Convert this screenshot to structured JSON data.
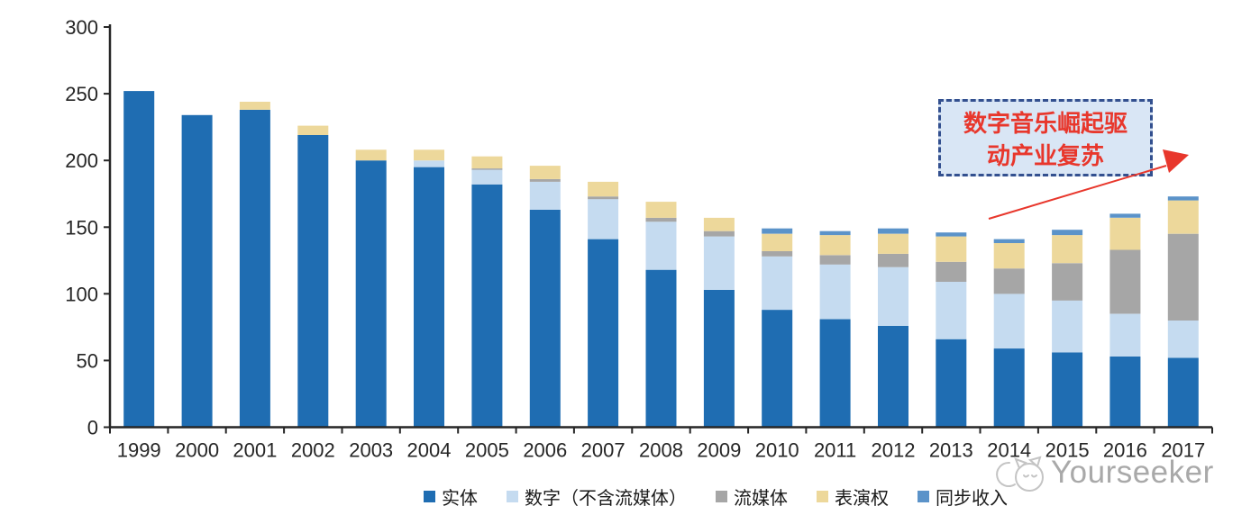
{
  "chart_data": {
    "type": "bar",
    "stacked": true,
    "title": "",
    "xlabel": "",
    "ylabel": "",
    "categories": [
      "1999",
      "2000",
      "2001",
      "2002",
      "2003",
      "2004",
      "2005",
      "2006",
      "2007",
      "2008",
      "2009",
      "2010",
      "2011",
      "2012",
      "2013",
      "2014",
      "2015",
      "2016",
      "2017"
    ],
    "series": [
      {
        "key": "physical",
        "name": "实体",
        "color": "#1F6DB2",
        "values": [
          252,
          234,
          238,
          219,
          200,
          195,
          182,
          163,
          141,
          118,
          103,
          88,
          81,
          76,
          66,
          59,
          56,
          53,
          52
        ]
      },
      {
        "key": "digital-ex-stream",
        "name": "数字（不含流媒体）",
        "color": "#C5DBF0",
        "values": [
          0,
          0,
          0,
          0,
          0,
          5,
          11,
          21,
          30,
          36,
          40,
          40,
          41,
          44,
          43,
          41,
          39,
          32,
          28
        ]
      },
      {
        "key": "streaming",
        "name": "流媒体",
        "color": "#A6A6A6",
        "values": [
          0,
          0,
          0,
          0,
          0,
          0,
          1,
          2,
          2,
          3,
          4,
          4,
          7,
          10,
          15,
          19,
          28,
          48,
          65
        ]
      },
      {
        "key": "performance",
        "name": "表演权",
        "color": "#EDD89B",
        "values": [
          0,
          0,
          6,
          7,
          8,
          8,
          9,
          10,
          11,
          12,
          10,
          13,
          15,
          15,
          19,
          19,
          21,
          24,
          25
        ]
      },
      {
        "key": "sync",
        "name": "同步收入",
        "color": "#5B93C9",
        "values": [
          0,
          0,
          0,
          0,
          0,
          0,
          0,
          0,
          0,
          0,
          0,
          4,
          3,
          4,
          3,
          3,
          4,
          3,
          3
        ]
      }
    ],
    "y_ticks": [
      0,
      50,
      100,
      150,
      200,
      250,
      300
    ],
    "ylim": [
      0,
      300
    ],
    "grid": false,
    "legend_position": "bottom"
  },
  "annotation": {
    "line1": "数字音乐崛起驱",
    "line2": "动产业复苏",
    "text_color": "#E8372C",
    "border_color": "#33508F",
    "fill_color": "#D9E6F5",
    "arrow_color": "#E8372C"
  },
  "watermark": {
    "text": "Yourseeker",
    "icon": "cat-doodle-icon",
    "color": "#9E9E9E"
  },
  "axis": {
    "color": "#262626"
  }
}
